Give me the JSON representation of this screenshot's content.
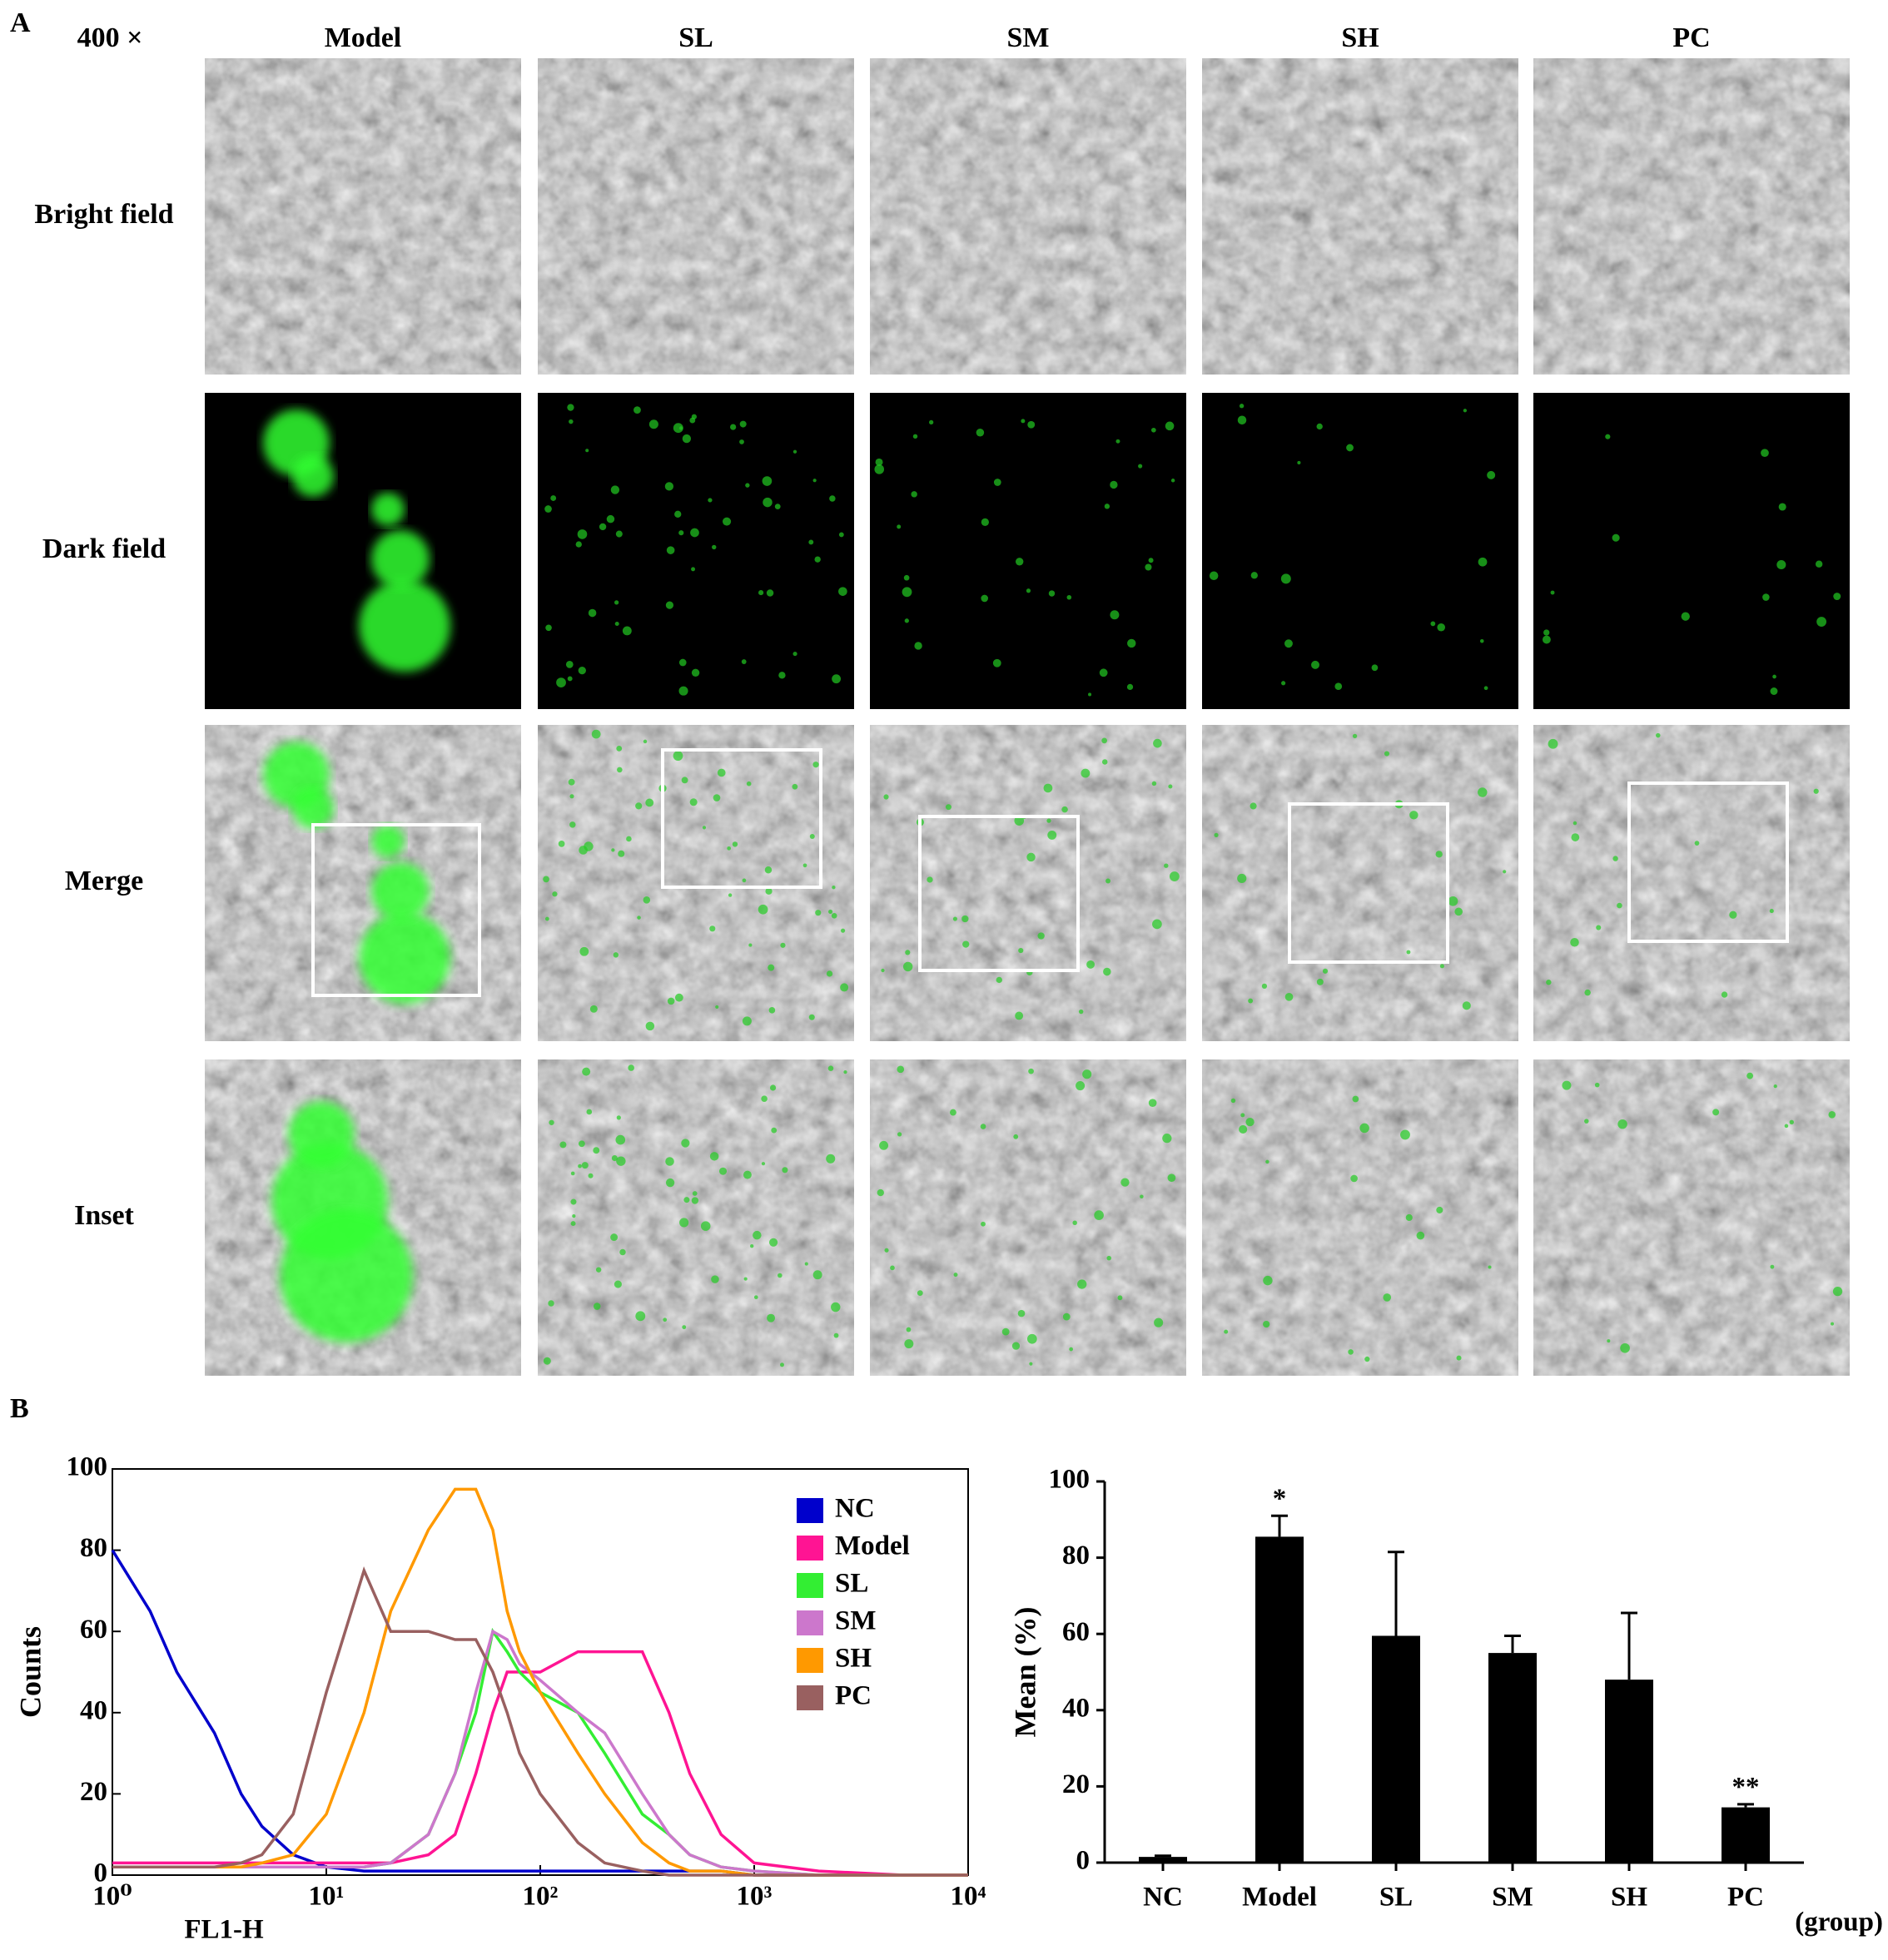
{
  "panel_a": {
    "label": "A",
    "magnification": "400 ×",
    "columns": [
      "Model",
      "SL",
      "SM",
      "SH",
      "PC"
    ],
    "rows": [
      "Bright field",
      "Dark field",
      "Merge",
      "Inset"
    ]
  },
  "panel_b": {
    "label": "B"
  },
  "chart_data": [
    {
      "type": "line",
      "xlabel": "FL1-H",
      "ylabel": "Counts",
      "log_x": true,
      "xlim": [
        1,
        10000
      ],
      "ylim": [
        0,
        100
      ],
      "xticks": [
        {
          "value": 1,
          "label": "10⁰"
        },
        {
          "value": 10,
          "label": "10¹"
        },
        {
          "value": 100,
          "label": "10²"
        },
        {
          "value": 1000,
          "label": "10³"
        },
        {
          "value": 10000,
          "label": "10⁴"
        }
      ],
      "yticks": [
        0,
        20,
        40,
        60,
        80,
        100
      ],
      "legend": "upper right",
      "x": [
        1,
        1.5,
        2,
        3,
        4,
        5,
        7,
        10,
        15,
        20,
        30,
        40,
        50,
        60,
        70,
        80,
        100,
        150,
        200,
        300,
        400,
        500,
        700,
        1000,
        2000,
        5000,
        10000
      ],
      "series": [
        {
          "name": "NC",
          "color": "#0000cc",
          "values": [
            80,
            65,
            50,
            35,
            20,
            12,
            5,
            2,
            1,
            1,
            1,
            1,
            1,
            1,
            1,
            1,
            1,
            1,
            1,
            1,
            1,
            1,
            1,
            0,
            0,
            0,
            0
          ]
        },
        {
          "name": "Model",
          "color": "#ff1493",
          "values": [
            3,
            3,
            3,
            3,
            3,
            3,
            3,
            3,
            3,
            3,
            5,
            10,
            25,
            40,
            50,
            50,
            50,
            55,
            55,
            55,
            40,
            25,
            10,
            3,
            1,
            0,
            0
          ]
        },
        {
          "name": "SL",
          "color": "#33ee33",
          "values": [
            2,
            2,
            2,
            2,
            2,
            2,
            2,
            2,
            2,
            3,
            10,
            25,
            40,
            60,
            55,
            50,
            45,
            40,
            30,
            15,
            10,
            5,
            2,
            1,
            0,
            0,
            0
          ]
        },
        {
          "name": "SM",
          "color": "#cc77cc",
          "values": [
            2,
            2,
            2,
            2,
            2,
            2,
            2,
            2,
            2,
            3,
            10,
            25,
            45,
            60,
            58,
            52,
            48,
            40,
            35,
            20,
            10,
            5,
            2,
            1,
            0,
            0,
            0
          ]
        },
        {
          "name": "SH",
          "color": "#ff9900",
          "values": [
            2,
            2,
            2,
            2,
            2,
            3,
            5,
            15,
            40,
            65,
            85,
            95,
            95,
            85,
            65,
            55,
            45,
            30,
            20,
            8,
            3,
            1,
            1,
            0,
            0,
            0,
            0
          ]
        },
        {
          "name": "PC",
          "color": "#996060",
          "values": [
            2,
            2,
            2,
            2,
            3,
            5,
            15,
            45,
            75,
            60,
            60,
            58,
            58,
            50,
            40,
            30,
            20,
            8,
            3,
            1,
            0,
            0,
            0,
            0,
            0,
            0,
            0
          ]
        }
      ]
    },
    {
      "type": "bar",
      "ylabel": "Mean  (%)",
      "xlabel": "(group)",
      "color": "#000000",
      "categories": [
        "NC",
        "Model",
        "SL",
        "SM",
        "SH",
        "PC"
      ],
      "values": [
        1.5,
        85.5,
        59.5,
        55,
        48,
        14.5
      ],
      "errors": [
        0.3,
        5.5,
        22,
        4.5,
        17.5,
        0.8
      ],
      "significance": [
        null,
        "*",
        null,
        null,
        null,
        "**"
      ],
      "ylim": [
        0,
        100
      ],
      "yticks": [
        0,
        20,
        40,
        60,
        80,
        100
      ]
    }
  ]
}
